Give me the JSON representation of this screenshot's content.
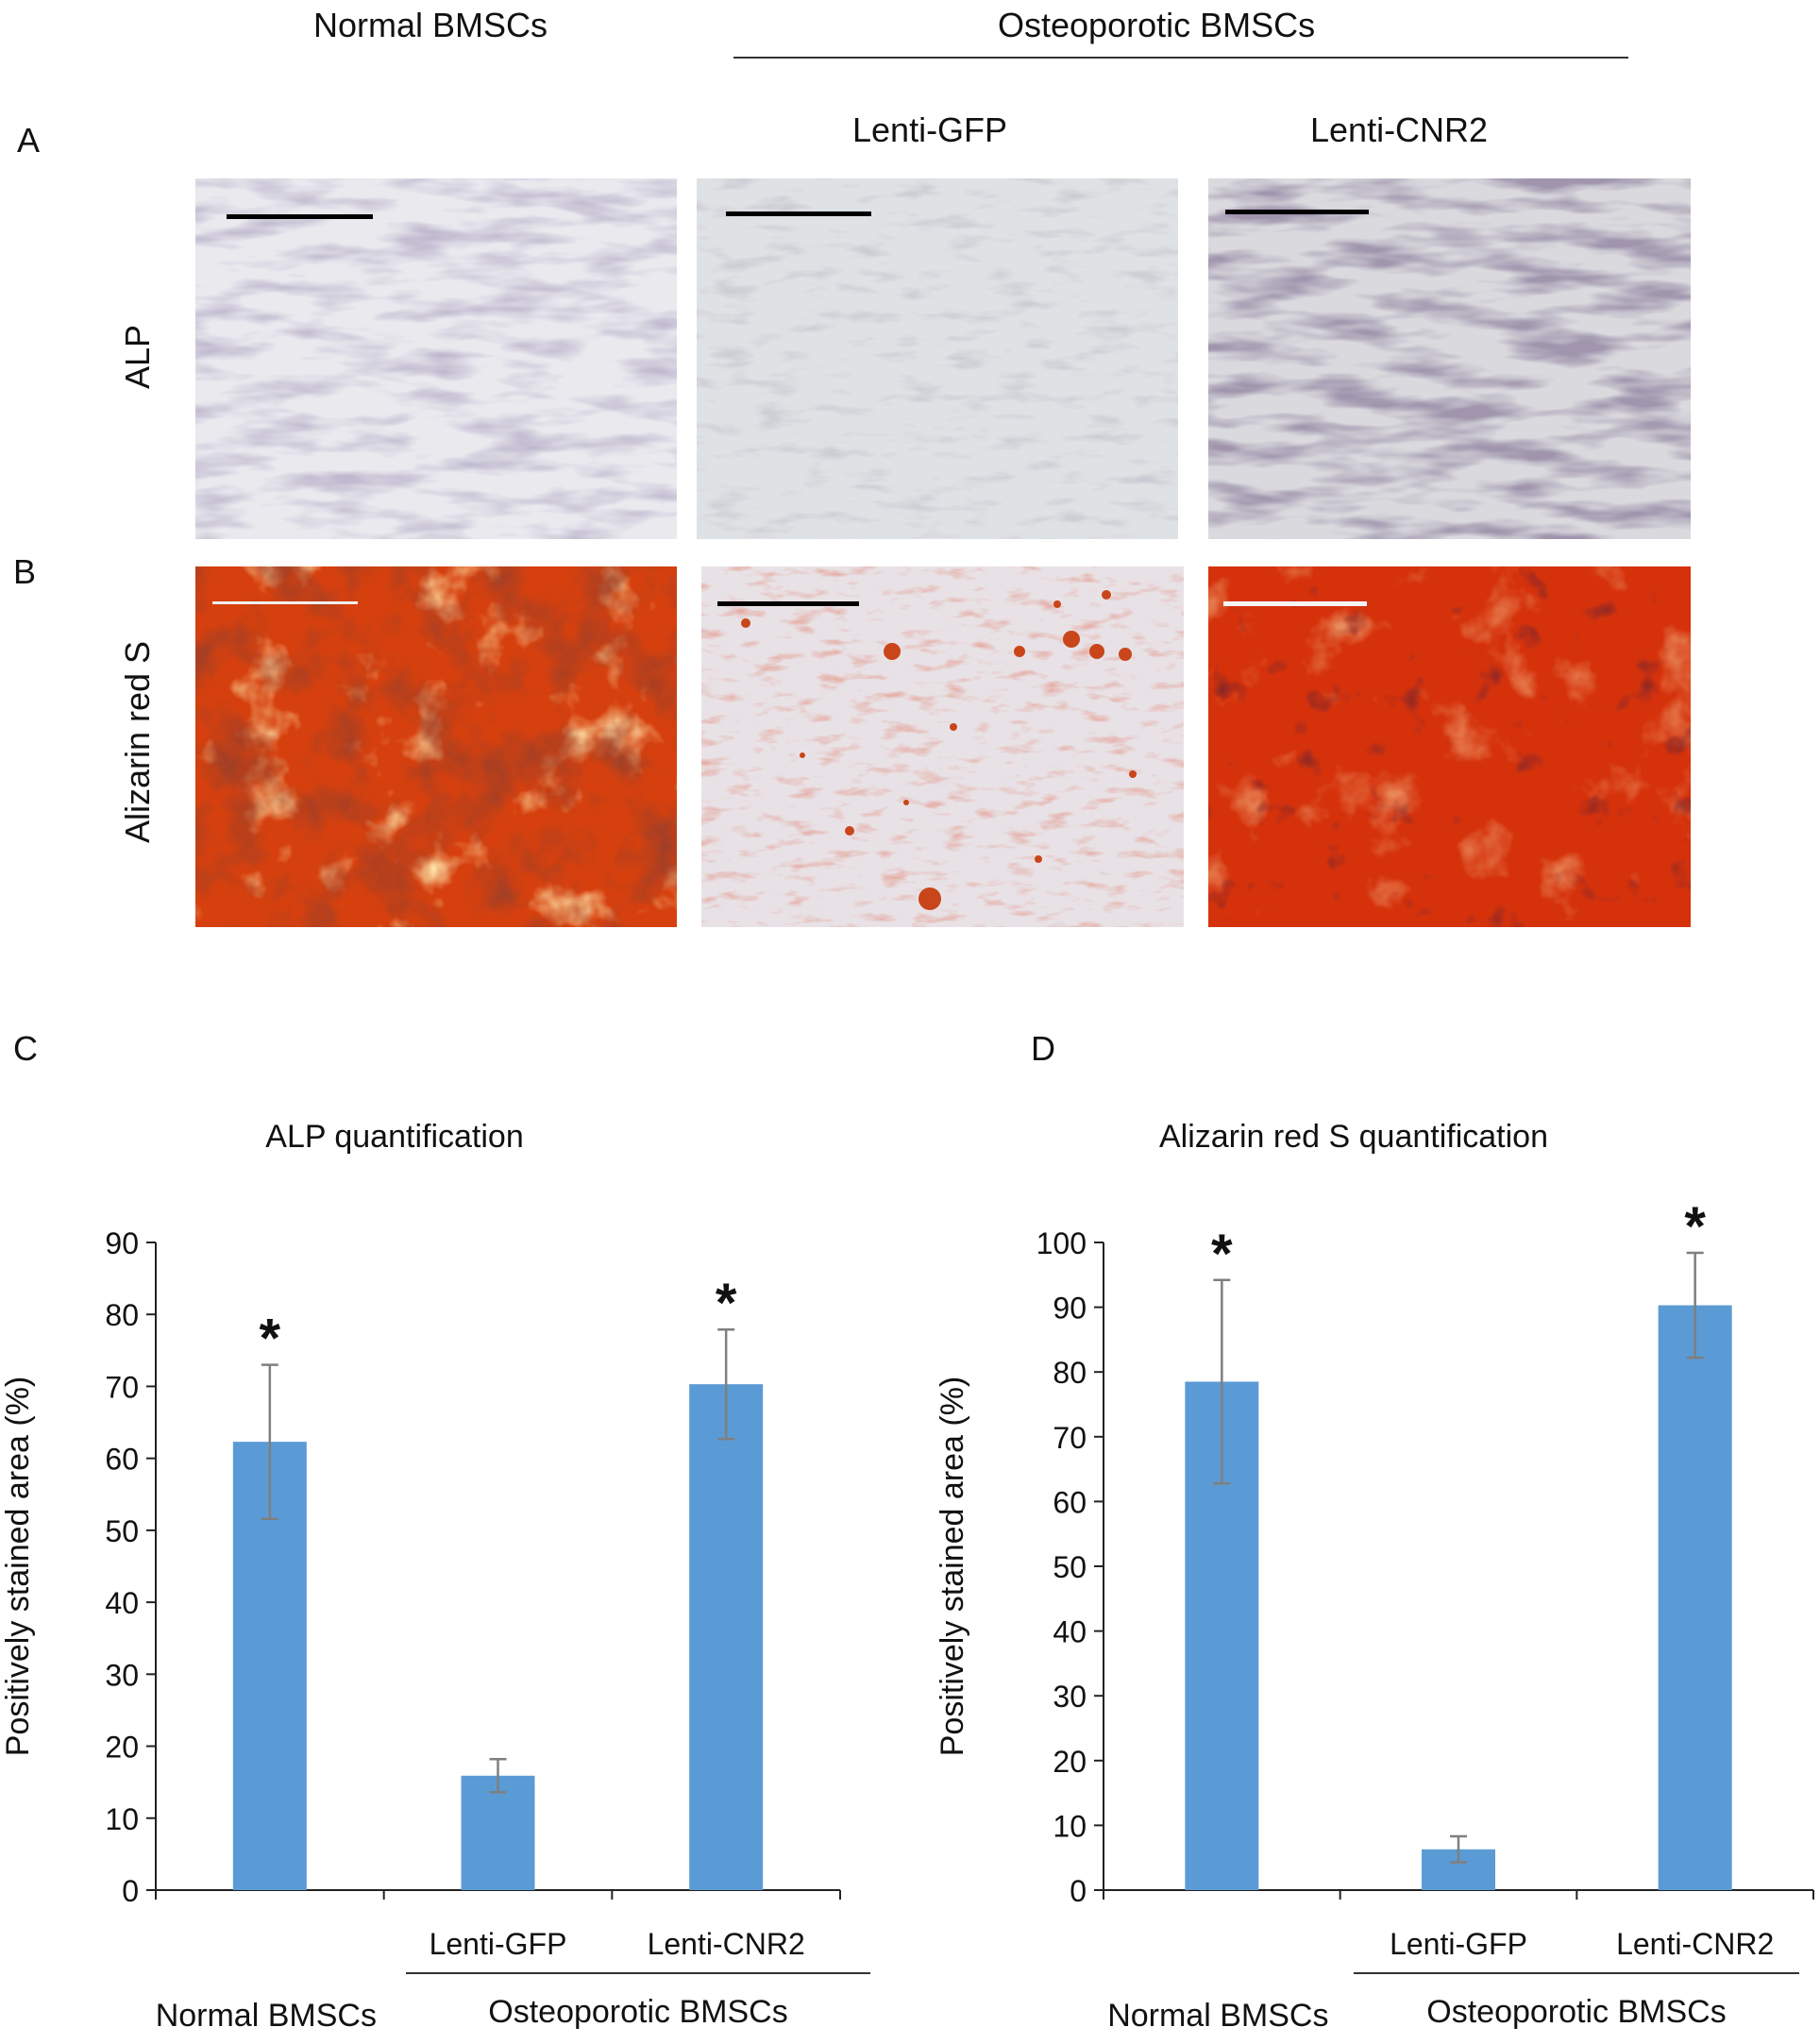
{
  "panel_letters": {
    "a": "A",
    "b": "B",
    "c": "C",
    "d": "D"
  },
  "top_headers": {
    "normal": "Normal BMSCs",
    "osteoporotic": "Osteoporotic BMSCs",
    "lenti_gfp": "Lenti-GFP",
    "lenti_cnr2": "Lenti-CNR2"
  },
  "row_labels": {
    "alp": "ALP",
    "alizarin": "Alizarin red S"
  },
  "colors": {
    "bar": "#5b9bd5",
    "error": "#7f7f7f"
  },
  "chart_data": [
    {
      "type": "bar",
      "title": "ALP quantification",
      "ylabel": "Positively stained area (%)",
      "xlabel": "",
      "ylim": [
        0,
        90
      ],
      "yticks": [
        0,
        10,
        20,
        30,
        40,
        50,
        60,
        70,
        80,
        90
      ],
      "categories": [
        "",
        "Lenti-GFP",
        "Lenti-CNR2"
      ],
      "values": [
        62.3,
        15.9,
        70.3
      ],
      "errors": [
        10.7,
        2.3,
        7.6
      ],
      "significance": [
        "*",
        "",
        "*"
      ],
      "group_labels": {
        "normal": "Normal BMSCs",
        "osteoporotic": "Osteoporotic BMSCs"
      },
      "grid": false,
      "legend": "none"
    },
    {
      "type": "bar",
      "title": "Alizarin red S  quantification",
      "ylabel": "Positively stained area (%)",
      "xlabel": "",
      "ylim": [
        0,
        100
      ],
      "yticks": [
        0,
        10,
        20,
        30,
        40,
        50,
        60,
        70,
        80,
        90,
        100
      ],
      "categories": [
        "",
        "Lenti-GFP",
        "Lenti-CNR2"
      ],
      "values": [
        78.5,
        6.3,
        90.3
      ],
      "errors": [
        15.7,
        2.0,
        8.1
      ],
      "significance": [
        "*",
        "",
        "*"
      ],
      "group_labels": {
        "normal": "Normal BMSCs",
        "osteoporotic": "Osteoporotic BMSCs"
      },
      "grid": false,
      "legend": "none"
    }
  ]
}
